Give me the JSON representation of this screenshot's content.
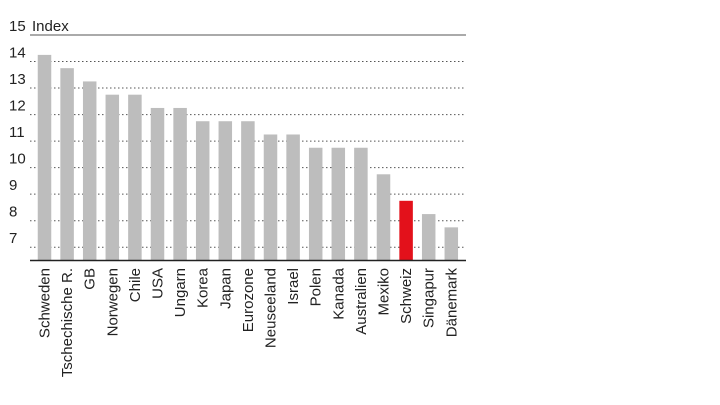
{
  "chart_data": {
    "type": "bar",
    "unit_label": "Index",
    "categories": [
      "Schweden",
      "Tschechische R.",
      "GB",
      "Norwegen",
      "Chile",
      "USA",
      "Ungarn",
      "Korea",
      "Japan",
      "Eurozone",
      "Neuseeland",
      "Israel",
      "Polen",
      "Kanada",
      "Australien",
      "Mexiko",
      "Schweiz",
      "Singapur",
      "Dänemark"
    ],
    "values": [
      14.25,
      13.75,
      13.25,
      12.75,
      12.75,
      12.25,
      12.25,
      11.75,
      11.75,
      11.75,
      11.25,
      11.25,
      10.75,
      10.75,
      10.75,
      9.75,
      8.75,
      8.25,
      7.75
    ],
    "highlight": "Schweiz",
    "yticks": [
      7,
      8,
      9,
      10,
      11,
      12,
      13,
      14,
      15
    ],
    "ylim": [
      6.5,
      15
    ],
    "grid": "dotted horizontal",
    "colors": {
      "bar": "#bdbdbd",
      "highlight": "#e3111b",
      "highlight_label": "#e3111b",
      "text": "#222222"
    }
  }
}
